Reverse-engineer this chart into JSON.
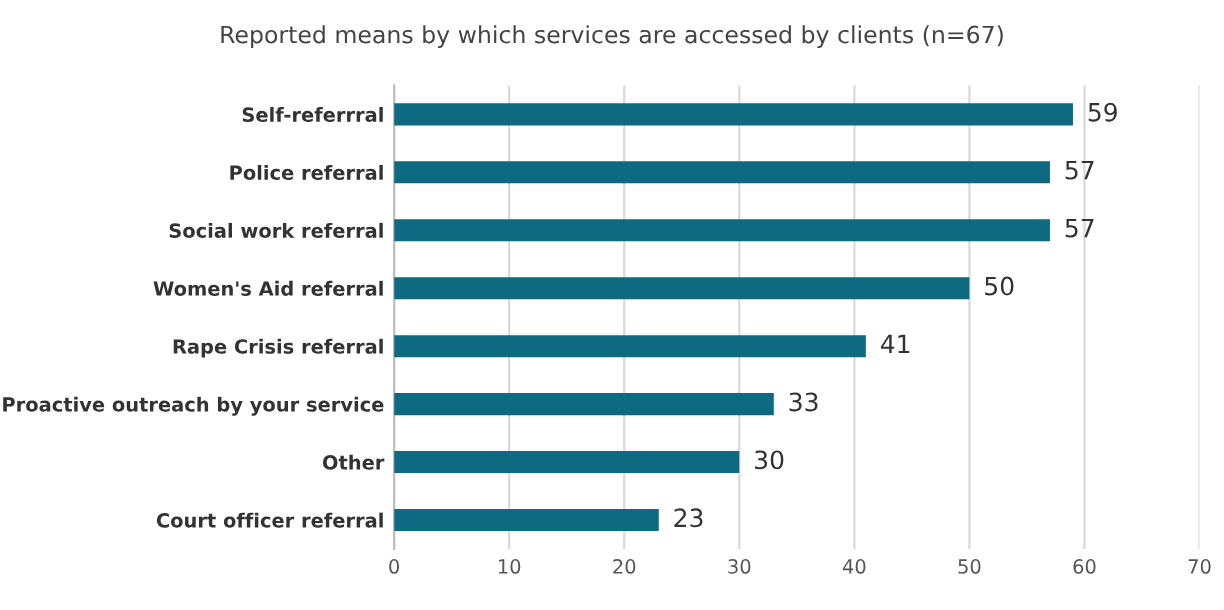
{
  "chart_data": {
    "type": "bar",
    "orientation": "horizontal",
    "title": "Reported means by which services are accessed by clients (n=67)",
    "categories": [
      "Self-referrral",
      "Police referral",
      "Social work referral",
      "Women's Aid referral",
      "Rape Crisis referral",
      "Proactive outreach by your service",
      "Other",
      "Court officer referral"
    ],
    "values": [
      59,
      57,
      57,
      50,
      41,
      33,
      30,
      23
    ],
    "color": "#0e6a80",
    "xlim": [
      0,
      70
    ],
    "xticks": [
      0,
      10,
      20,
      30,
      40,
      50,
      60,
      70
    ],
    "grid": "x",
    "data_labels": true,
    "legend": false
  }
}
